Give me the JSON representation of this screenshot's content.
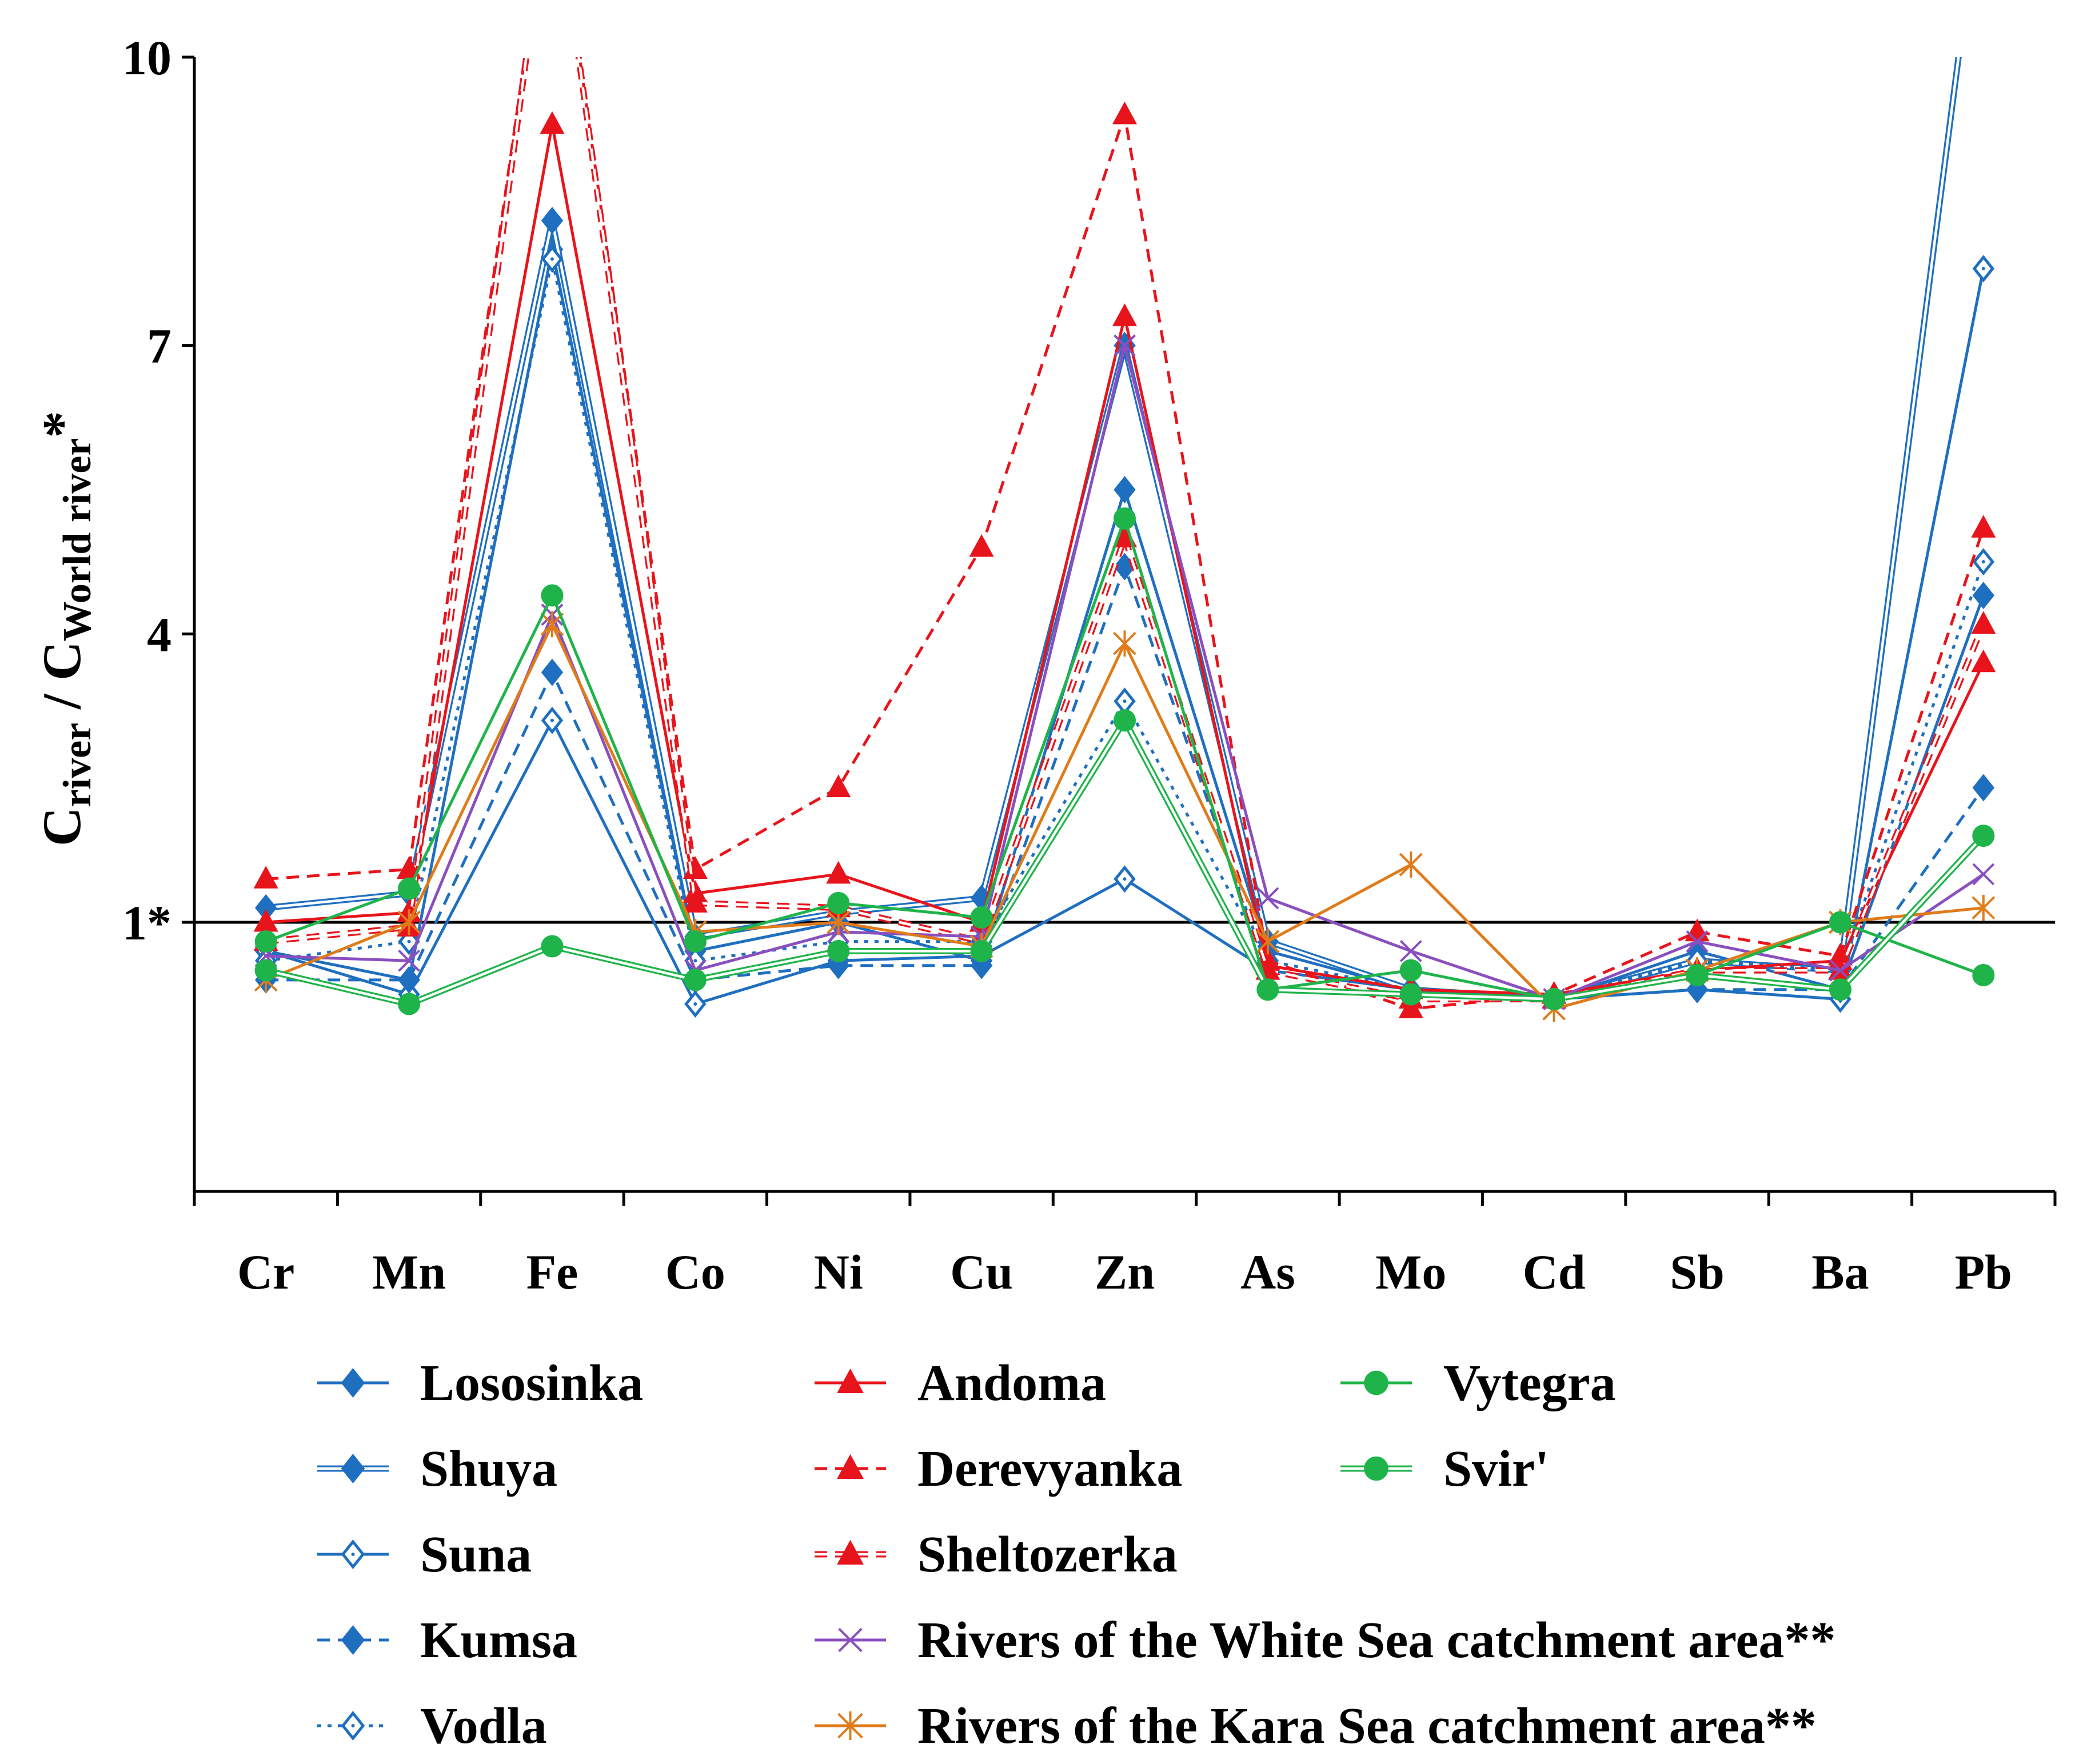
{
  "chart_data": {
    "type": "line",
    "ylabel_main": "C",
    "ylabel_sub1": "river",
    "ylabel_mid": " / C",
    "ylabel_sub2": "World river",
    "ylabel_star": "*",
    "ylim": [
      -1.8,
      10
    ],
    "y_ticks": [
      {
        "value": 10,
        "label": "10"
      },
      {
        "value": 7,
        "label": "7"
      },
      {
        "value": 4,
        "label": "4"
      },
      {
        "value": 1,
        "label": "1*"
      }
    ],
    "reference_line": 1,
    "categories": [
      "Cr",
      "Mn",
      "Fe",
      "Co",
      "Ni",
      "Cu",
      "Zn",
      "As",
      "Mo",
      "Cd",
      "Sb",
      "Ba",
      "Pb"
    ],
    "series": [
      {
        "name": "Lososinka",
        "color": "#1f6fc0",
        "dash": "solid",
        "double": false,
        "marker": "diamond",
        "fill": "filled",
        "values": [
          0.7,
          0.4,
          8.0,
          0.7,
          1.0,
          0.6,
          5.5,
          0.7,
          0.3,
          0.2,
          0.7,
          0.3,
          4.4
        ]
      },
      {
        "name": "Shuya",
        "color": "#1f6fc0",
        "dash": "solid",
        "double": true,
        "marker": "diamond",
        "fill": "filled",
        "values": [
          1.15,
          1.3,
          8.3,
          0.85,
          1.1,
          1.25,
          7.0,
          0.8,
          0.3,
          0.2,
          0.6,
          0.5,
          12.0
        ]
      },
      {
        "name": "Suna",
        "color": "#1f6fc0",
        "dash": "solid",
        "double": false,
        "marker": "diamond",
        "fill": "open",
        "values": [
          0.7,
          0.25,
          3.1,
          0.15,
          0.6,
          0.65,
          1.45,
          0.5,
          0.3,
          0.2,
          0.3,
          0.2,
          7.8
        ]
      },
      {
        "name": "Kumsa",
        "color": "#1f6fc0",
        "dash": "dash",
        "double": false,
        "marker": "diamond",
        "fill": "filled",
        "values": [
          0.4,
          0.4,
          3.6,
          0.4,
          0.55,
          0.55,
          4.7,
          0.5,
          0.3,
          0.2,
          0.3,
          0.3,
          2.4
        ]
      },
      {
        "name": "Vodla",
        "color": "#1f6fc0",
        "dash": "dot",
        "double": false,
        "marker": "diamond",
        "fill": "open",
        "values": [
          0.6,
          0.8,
          7.9,
          0.6,
          0.8,
          0.8,
          3.3,
          0.6,
          0.3,
          0.2,
          0.6,
          0.5,
          4.75
        ]
      },
      {
        "name": "Andoma",
        "color": "#e8141c",
        "dash": "solid",
        "double": false,
        "marker": "triangle",
        "fill": "filled",
        "values": [
          1.0,
          1.1,
          9.3,
          1.3,
          1.5,
          1.0,
          7.3,
          0.55,
          0.3,
          0.25,
          0.5,
          0.6,
          3.7
        ]
      },
      {
        "name": "Derevyanka",
        "color": "#e8141c",
        "dash": "dash",
        "double": false,
        "marker": "triangle",
        "fill": "filled",
        "values": [
          1.45,
          1.55,
          12.0,
          1.55,
          2.4,
          4.9,
          9.4,
          0.6,
          0.1,
          0.25,
          0.9,
          0.65,
          5.1
        ]
      },
      {
        "name": "Sheltozerka",
        "color": "#e8141c",
        "dash": "dash",
        "double": true,
        "marker": "triangle",
        "fill": "filled",
        "values": [
          0.8,
          0.95,
          12.0,
          1.2,
          1.15,
          0.8,
          5.0,
          0.5,
          0.2,
          0.2,
          0.5,
          0.5,
          4.1
        ]
      },
      {
        "name": "Rivers of the White Sea catchment area**",
        "color": "#8a4fbf",
        "dash": "solid",
        "double": false,
        "marker": "cross",
        "fill": "filled",
        "values": [
          0.65,
          0.6,
          4.2,
          0.5,
          0.9,
          0.85,
          7.0,
          1.25,
          0.7,
          0.2,
          0.8,
          0.5,
          1.5
        ]
      },
      {
        "name": "Rivers of the Kara Sea catchment area**",
        "color": "#e07b1a",
        "dash": "solid",
        "double": false,
        "marker": "asterisk",
        "fill": "filled",
        "values": [
          0.4,
          1.0,
          4.1,
          0.9,
          1.0,
          0.75,
          3.9,
          0.8,
          1.6,
          0.1,
          0.5,
          1.0,
          1.15
        ]
      },
      {
        "name": "Vytegra",
        "color": "#1fb44a",
        "dash": "solid",
        "double": false,
        "marker": "circle",
        "fill": "filled",
        "values": [
          0.8,
          1.35,
          4.4,
          0.8,
          1.2,
          1.05,
          5.2,
          0.3,
          0.5,
          0.2,
          0.45,
          1.0,
          0.45
        ]
      },
      {
        "name": "Svir'",
        "color": "#1fb44a",
        "dash": "solid",
        "double": true,
        "marker": "circle",
        "fill": "filled",
        "values": [
          0.5,
          0.15,
          0.75,
          0.4,
          0.7,
          0.7,
          3.1,
          0.3,
          0.25,
          0.2,
          0.45,
          0.3,
          1.9
        ]
      }
    ],
    "legend": {
      "placement": "bottom",
      "columns": [
        [
          "Lososinka",
          "Shuya",
          "Suna",
          "Kumsa",
          "Vodla"
        ],
        [
          "Andoma",
          "Derevyanka",
          "Sheltozerka",
          "Rivers of the White Sea catchment area**",
          "Rivers of the Kara Sea catchment area**"
        ],
        [
          "Vytegra",
          "Svir'"
        ]
      ]
    }
  }
}
